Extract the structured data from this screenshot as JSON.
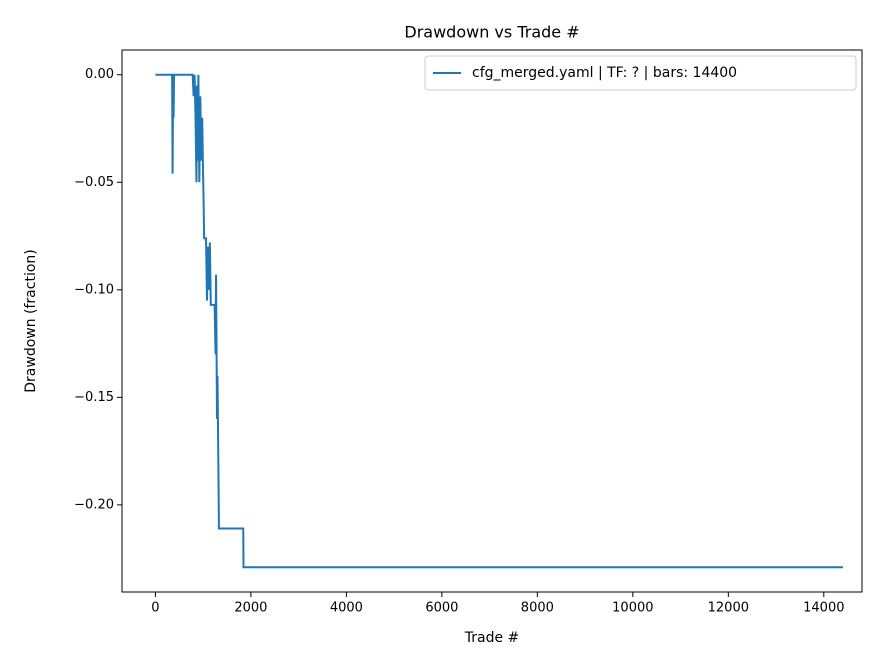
{
  "chart_data": {
    "type": "line",
    "title": "Drawdown vs Trade #",
    "x_label": "Trade #",
    "y_label": "Drawdown (fraction)",
    "x": [
      0,
      350,
      360,
      370,
      380,
      390,
      780,
      800,
      820,
      840,
      860,
      870,
      880,
      900,
      920,
      940,
      960,
      980,
      1000,
      1010,
      1020,
      1060,
      1080,
      1100,
      1120,
      1140,
      1160,
      1240,
      1260,
      1270,
      1290,
      1300,
      1320,
      1330,
      1840,
      1845,
      14400
    ],
    "series": [
      {
        "name": "cfg_merged.yaml | TF: ? | bars: 14400",
        "color": "#1f77b4",
        "values": [
          0,
          0,
          -0.046,
          0,
          -0.02,
          0,
          0,
          -0.01,
          0,
          -0.02,
          -0.05,
          -0.005,
          -0.04,
          0,
          -0.05,
          -0.01,
          -0.04,
          -0.02,
          -0.048,
          -0.06,
          -0.076,
          -0.076,
          -0.105,
          -0.08,
          -0.1,
          -0.078,
          -0.107,
          -0.107,
          -0.13,
          -0.093,
          -0.16,
          -0.14,
          -0.185,
          -0.211,
          -0.211,
          -0.229,
          -0.229
        ]
      }
    ],
    "xlim": [
      -700,
      14800
    ],
    "ylim": [
      -0.2405,
      0.0115
    ],
    "xticks": [
      0,
      2000,
      4000,
      6000,
      8000,
      10000,
      12000,
      14000
    ],
    "yticks": [
      {
        "value": 0,
        "label": "0.00"
      },
      {
        "value": -0.05,
        "label": "−0.05"
      },
      {
        "value": -0.1,
        "label": "−0.10"
      },
      {
        "value": -0.15,
        "label": "−0.15"
      },
      {
        "value": -0.2,
        "label": "−0.20"
      }
    ],
    "legend": "upper right",
    "grid": false
  }
}
